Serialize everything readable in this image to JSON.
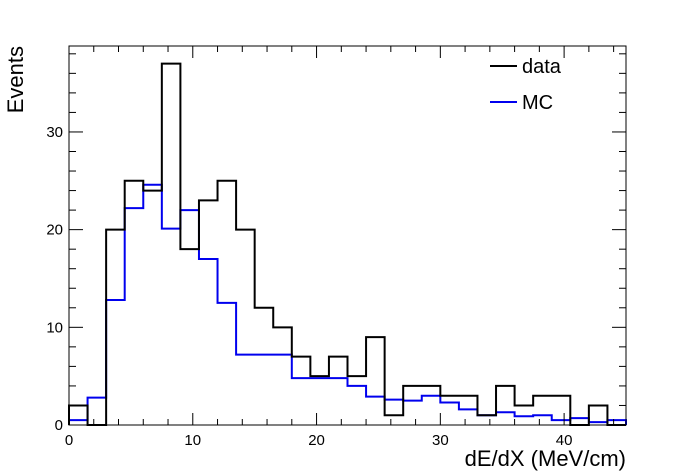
{
  "chart_data": {
    "type": "histogram",
    "xlabel": "dE/dX (MeV/cm)",
    "ylabel": "Events",
    "xlim": [
      0,
      45
    ],
    "ylim": [
      0,
      38.8
    ],
    "xticks": [
      0,
      10,
      20,
      30,
      40
    ],
    "yticks": [
      0,
      10,
      20,
      30
    ],
    "bin_width": 1.5,
    "bin_edges": [
      0,
      1.5,
      3,
      4.5,
      6,
      7.5,
      9,
      10.5,
      12,
      13.5,
      15,
      16.5,
      18,
      19.5,
      21,
      22.5,
      24,
      25.5,
      27,
      28.5,
      30,
      31.5,
      33,
      34.5,
      36,
      37.5,
      39,
      40.5,
      42,
      43.5,
      45
    ],
    "grid": false,
    "legend_position": "top-right",
    "series": [
      {
        "name": "data",
        "color": "#000000",
        "values": [
          2,
          0,
          20,
          25,
          24,
          37,
          18,
          23,
          25,
          20,
          12,
          10,
          7,
          5,
          7,
          5,
          9,
          1,
          4,
          4,
          3,
          3,
          1,
          4,
          2,
          3,
          3,
          0,
          2,
          0
        ]
      },
      {
        "name": "MC",
        "color": "#0000ee",
        "values": [
          0.5,
          2.8,
          12.8,
          22.2,
          24.6,
          20.1,
          22.0,
          17.0,
          12.5,
          7.2,
          7.2,
          7.2,
          4.8,
          4.8,
          4.8,
          4.0,
          2.9,
          2.6,
          2.5,
          3.0,
          2.3,
          1.6,
          1.0,
          1.3,
          0.9,
          1.0,
          0.5,
          0.7,
          0.3,
          0.5
        ]
      }
    ]
  }
}
